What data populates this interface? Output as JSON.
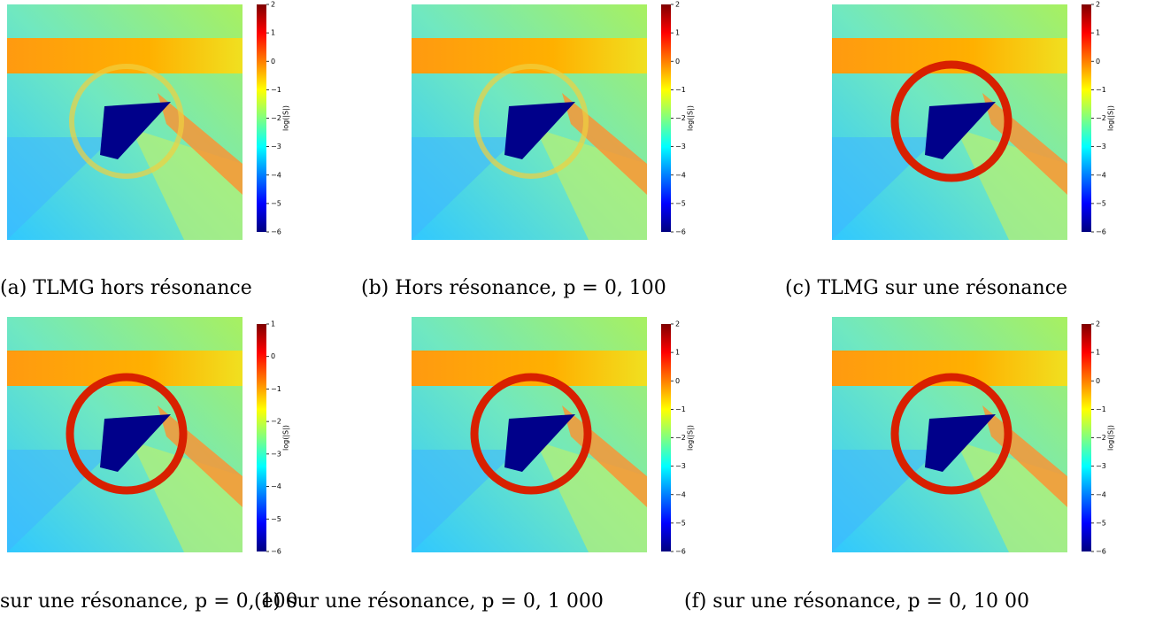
{
  "panels": [
    {
      "caption": "(a) TLMG hors résonance",
      "colorbar": {
        "label": "log(|S|)",
        "lim": [
          -6,
          2
        ],
        "ticks": [
          {
            "value": -6,
            "label": "−6"
          },
          {
            "value": -5,
            "label": "−5"
          },
          {
            "value": -4,
            "label": "−4"
          },
          {
            "value": -3,
            "label": "−3"
          },
          {
            "value": -2,
            "label": "−2"
          },
          {
            "value": -1,
            "label": "−1"
          },
          0,
          1,
          2
        ]
      }
    },
    {
      "caption": "(b) Hors résonance, p = 0, 100",
      "colorbar": {
        "label": "log(|S|)",
        "lim": [
          -6,
          2
        ],
        "ticks": [
          {
            "value": -6,
            "label": "−6"
          },
          {
            "value": -5,
            "label": "−5"
          },
          {
            "value": -4,
            "label": "−4"
          },
          {
            "value": -3,
            "label": "−3"
          },
          {
            "value": -2,
            "label": "−2"
          },
          {
            "value": -1,
            "label": "−1"
          },
          0,
          1,
          2
        ]
      }
    },
    {
      "caption": "(c) TLMG sur une résonance",
      "colorbar": {
        "label": "log(|S|)",
        "lim": [
          -6,
          2
        ],
        "ticks": [
          {
            "value": -6,
            "label": "−6"
          },
          {
            "value": -5,
            "label": "−5"
          },
          {
            "value": -4,
            "label": "−4"
          },
          {
            "value": -3,
            "label": "−3"
          },
          {
            "value": -2,
            "label": "−2"
          },
          {
            "value": -1,
            "label": "−1"
          },
          0,
          1,
          2
        ]
      }
    },
    {
      "caption": "sur une résonance, p = 0, 100",
      "colorbar": {
        "label": "log(|S|)",
        "lim": [
          -6,
          1
        ],
        "ticks": [
          {
            "value": -6,
            "label": "−6"
          },
          {
            "value": -5,
            "label": "−5"
          },
          {
            "value": -4,
            "label": "−4"
          },
          {
            "value": -3,
            "label": "−3"
          },
          {
            "value": -2,
            "label": "−2"
          },
          {
            "value": -1,
            "label": "−1"
          },
          0,
          1
        ]
      }
    },
    {
      "caption": "(e) sur une résonance, p = 0, 1 000",
      "colorbar": {
        "label": "log(|S|)",
        "lim": [
          -6,
          2
        ],
        "ticks": [
          {
            "value": -6,
            "label": "−6"
          },
          {
            "value": -5,
            "label": "−5"
          },
          {
            "value": -4,
            "label": "−4"
          },
          {
            "value": -3,
            "label": "−3"
          },
          {
            "value": -2,
            "label": "−2"
          },
          {
            "value": -1,
            "label": "−1"
          },
          0,
          1,
          2
        ]
      }
    },
    {
      "caption": "(f) sur une résonance, p = 0, 10 00",
      "colorbar": {
        "label": "log(|S|)",
        "lim": [
          -6,
          2
        ],
        "ticks": [
          {
            "value": -6,
            "label": "−6"
          },
          {
            "value": -5,
            "label": "−5"
          },
          {
            "value": -4,
            "label": "−4"
          },
          {
            "value": -3,
            "label": "−3"
          },
          {
            "value": -2,
            "label": "−2"
          },
          {
            "value": -1,
            "label": "−1"
          },
          0,
          1,
          2
        ]
      }
    }
  ]
}
